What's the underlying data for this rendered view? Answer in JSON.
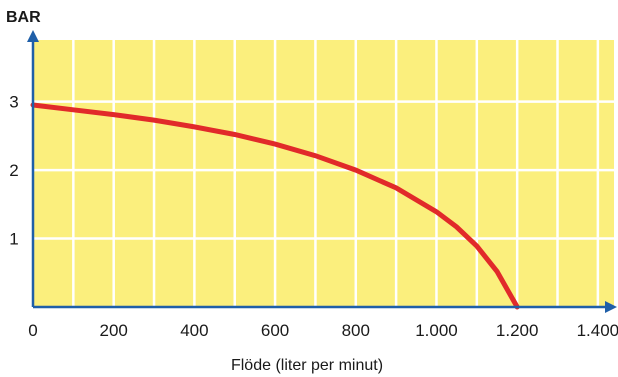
{
  "chart_data": {
    "type": "line",
    "ylabel": "BAR",
    "xlabel": "Flöde (liter per minut)",
    "x_ticks": [
      0,
      200,
      400,
      600,
      800,
      1000,
      1200,
      1400
    ],
    "x_tick_labels": [
      "0",
      "200",
      "400",
      "600",
      "800",
      "1.000",
      "1.200",
      "1.400"
    ],
    "y_ticks": [
      1,
      2,
      3
    ],
    "y_tick_labels": [
      "1",
      "2",
      "3"
    ],
    "xlim": [
      0,
      1440
    ],
    "ylim": [
      0,
      3.9
    ],
    "grid": true,
    "series": [
      {
        "x": [
          0,
          100,
          200,
          300,
          400,
          500,
          600,
          700,
          800,
          900,
          1000,
          1050,
          1100,
          1150,
          1200
        ],
        "y": [
          2.95,
          2.88,
          2.81,
          2.73,
          2.63,
          2.52,
          2.38,
          2.21,
          2.0,
          1.74,
          1.39,
          1.17,
          0.89,
          0.52,
          0.0
        ]
      }
    ],
    "colors": {
      "background": "#fbef7d",
      "grid": "#ffffff",
      "axis": "#1f5fa8",
      "line": "#e12a2a"
    }
  }
}
